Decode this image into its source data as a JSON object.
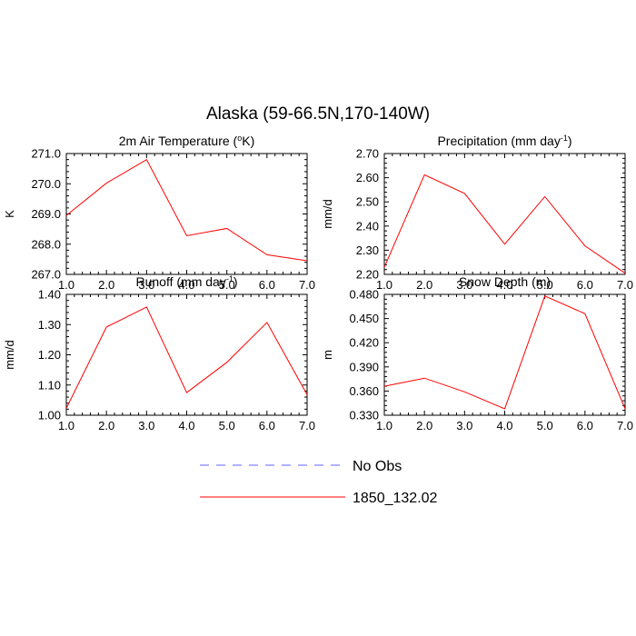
{
  "title": "Alaska (59-66.5N,170-140W)",
  "legend": {
    "placement": "bottom-center",
    "entries": [
      {
        "label": "No Obs",
        "color": "#6060ff",
        "style": "dashed"
      },
      {
        "label": "1850_132.02",
        "color": "#ff0000",
        "style": "solid"
      }
    ]
  },
  "chart_data": [
    {
      "type": "line",
      "title": "2m Air Temperature (",
      "title_sup": "o",
      "title_suffix": "K)",
      "ylabel": "K",
      "x": [
        1,
        2,
        3,
        4,
        5,
        6,
        7
      ],
      "xlim": [
        1,
        7
      ],
      "ylim": [
        267,
        271
      ],
      "xticks": [
        "1.0",
        "2.0",
        "3.0",
        "4.0",
        "5.0",
        "6.0",
        "7.0"
      ],
      "yticks": [
        267,
        268,
        269,
        270,
        271
      ],
      "yticklabels": [
        "267.0",
        "268.0",
        "269.0",
        "270.0",
        "271.0"
      ],
      "series": [
        {
          "name": "1850_132.02",
          "color": "#ff0000",
          "values": [
            268.95,
            270.02,
            270.8,
            268.28,
            268.52,
            267.65,
            267.45
          ]
        }
      ]
    },
    {
      "type": "line",
      "title": "Precipitation (mm day",
      "title_sup": "-1",
      "title_suffix": ")",
      "ylabel": "mm/d",
      "x": [
        1,
        2,
        3,
        4,
        5,
        6,
        7
      ],
      "xlim": [
        1,
        7
      ],
      "ylim": [
        2.2,
        2.7
      ],
      "xticks": [
        "1.0",
        "2.0",
        "3.0",
        "4.0",
        "5.0",
        "6.0",
        "7.0"
      ],
      "yticks": [
        2.2,
        2.3,
        2.4,
        2.5,
        2.6,
        2.7
      ],
      "yticklabels": [
        "2.20",
        "2.30",
        "2.40",
        "2.50",
        "2.60",
        "2.70"
      ],
      "series": [
        {
          "name": "1850_132.02",
          "color": "#ff0000",
          "values": [
            2.23,
            2.612,
            2.535,
            2.325,
            2.522,
            2.318,
            2.205
          ]
        }
      ]
    },
    {
      "type": "line",
      "title": "Runoff (mm day",
      "title_sup": "-1",
      "title_suffix": ")",
      "ylabel": "mm/d",
      "x": [
        1,
        2,
        3,
        4,
        5,
        6,
        7
      ],
      "xlim": [
        1,
        7
      ],
      "ylim": [
        1.0,
        1.4
      ],
      "xticks": [
        "1.0",
        "2.0",
        "3.0",
        "4.0",
        "5.0",
        "6.0",
        "7.0"
      ],
      "yticks": [
        1.0,
        1.1,
        1.2,
        1.3,
        1.4
      ],
      "yticklabels": [
        "1.00",
        "1.10",
        "1.20",
        "1.30",
        "1.40"
      ],
      "series": [
        {
          "name": "1850_132.02",
          "color": "#ff0000",
          "values": [
            1.023,
            1.292,
            1.358,
            1.075,
            1.175,
            1.307,
            1.068
          ]
        }
      ]
    },
    {
      "type": "line",
      "title": "Snow Depth (m)",
      "title_sup": "",
      "title_suffix": "",
      "ylabel": "m",
      "x": [
        1,
        2,
        3,
        4,
        5,
        6,
        7
      ],
      "xlim": [
        1,
        7
      ],
      "ylim": [
        0.33,
        0.48
      ],
      "xticks": [
        "1.0",
        "2.0",
        "3.0",
        "4.0",
        "5.0",
        "6.0",
        "7.0"
      ],
      "yticks": [
        0.33,
        0.36,
        0.39,
        0.42,
        0.45,
        0.48
      ],
      "yticklabels": [
        "0.330",
        "0.360",
        "0.390",
        "0.420",
        "0.450",
        "0.480"
      ],
      "series": [
        {
          "name": "1850_132.02",
          "color": "#ff0000",
          "values": [
            0.366,
            0.376,
            0.359,
            0.338,
            0.478,
            0.456,
            0.338
          ]
        }
      ]
    }
  ]
}
